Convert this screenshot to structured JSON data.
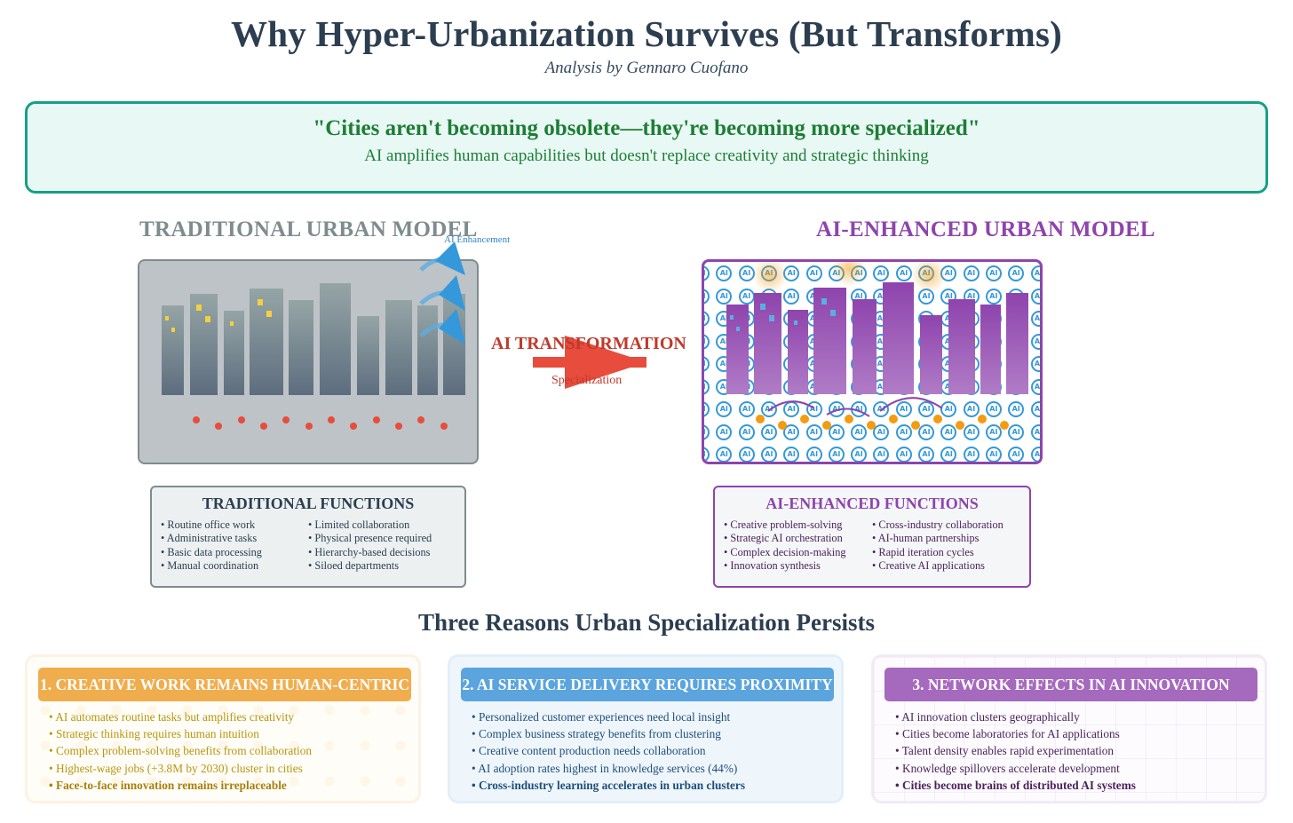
{
  "header": {
    "title": "Why Hyper-Urbanization Survives (But Transforms)",
    "subtitle": "Analysis by Gennaro Cuofano"
  },
  "quote": {
    "main": "\"Cities aren't becoming obsolete—they're becoming more specialized\"",
    "sub": "AI amplifies human capabilities but doesn't replace creativity and strategic thinking"
  },
  "traditional_model": {
    "title": "TRADITIONAL URBAN MODEL",
    "enhancement_label": "AI Enhancement",
    "functions_title": "TRADITIONAL FUNCTIONS",
    "functions_left": [
      "• Routine office work",
      "• Administrative tasks",
      "• Basic data processing",
      "• Manual coordination"
    ],
    "functions_right": [
      "• Limited collaboration",
      "• Physical presence required",
      "• Hierarchy-based decisions",
      "• Siloed departments"
    ]
  },
  "transformation": {
    "label": "AI TRANSFORMATION",
    "sublabel": "Specialization"
  },
  "ai_model": {
    "title": "AI-ENHANCED URBAN MODEL",
    "glyph": "AI",
    "functions_title": "AI-ENHANCED FUNCTIONS",
    "functions_left": [
      "• Creative problem-solving",
      "• Strategic AI orchestration",
      "• Complex decision-making",
      "• Innovation synthesis"
    ],
    "functions_right": [
      "• Cross-industry collaboration",
      "• AI-human partnerships",
      "• Rapid iteration cycles",
      "• Creative AI applications"
    ]
  },
  "reasons": {
    "title": "Three Reasons Urban Specialization Persists",
    "cards": [
      {
        "heading": "1. CREATIVE WORK REMAINS HUMAN-CENTRIC",
        "items": [
          "• AI automates routine tasks but amplifies creativity",
          "• Strategic thinking requires human intuition",
          "• Complex problem-solving benefits from collaboration",
          "• Highest-wage jobs (+3.8M by 2030) cluster in cities",
          "• Face-to-face innovation remains irreplaceable"
        ]
      },
      {
        "heading": "2. AI SERVICE DELIVERY REQUIRES PROXIMITY",
        "items": [
          "• Personalized customer experiences need local insight",
          "• Complex business strategy benefits from clustering",
          "• Creative content production needs collaboration",
          "• AI adoption rates highest in knowledge services (44%)",
          "• Cross-industry learning accelerates in urban clusters"
        ]
      },
      {
        "heading": "3. NETWORK EFFECTS IN AI INNOVATION",
        "items": [
          "• AI innovation clusters geographically",
          "• Cities become laboratories for AI applications",
          "• Talent density enables rapid experimentation",
          "• Knowledge spillovers accelerate development",
          "• Cities become brains of distributed AI systems"
        ]
      }
    ]
  },
  "colors": {
    "title": "#2c3e50",
    "quote_green": "#1e7e34",
    "quote_border": "#16a085",
    "traditional_gray": "#7f8c8d",
    "ai_purple": "#8e44ad",
    "transform_red": "#c0392b",
    "arrow_red": "#e74c3c",
    "ai_blue": "#3498db",
    "orange": "#f39c12"
  }
}
